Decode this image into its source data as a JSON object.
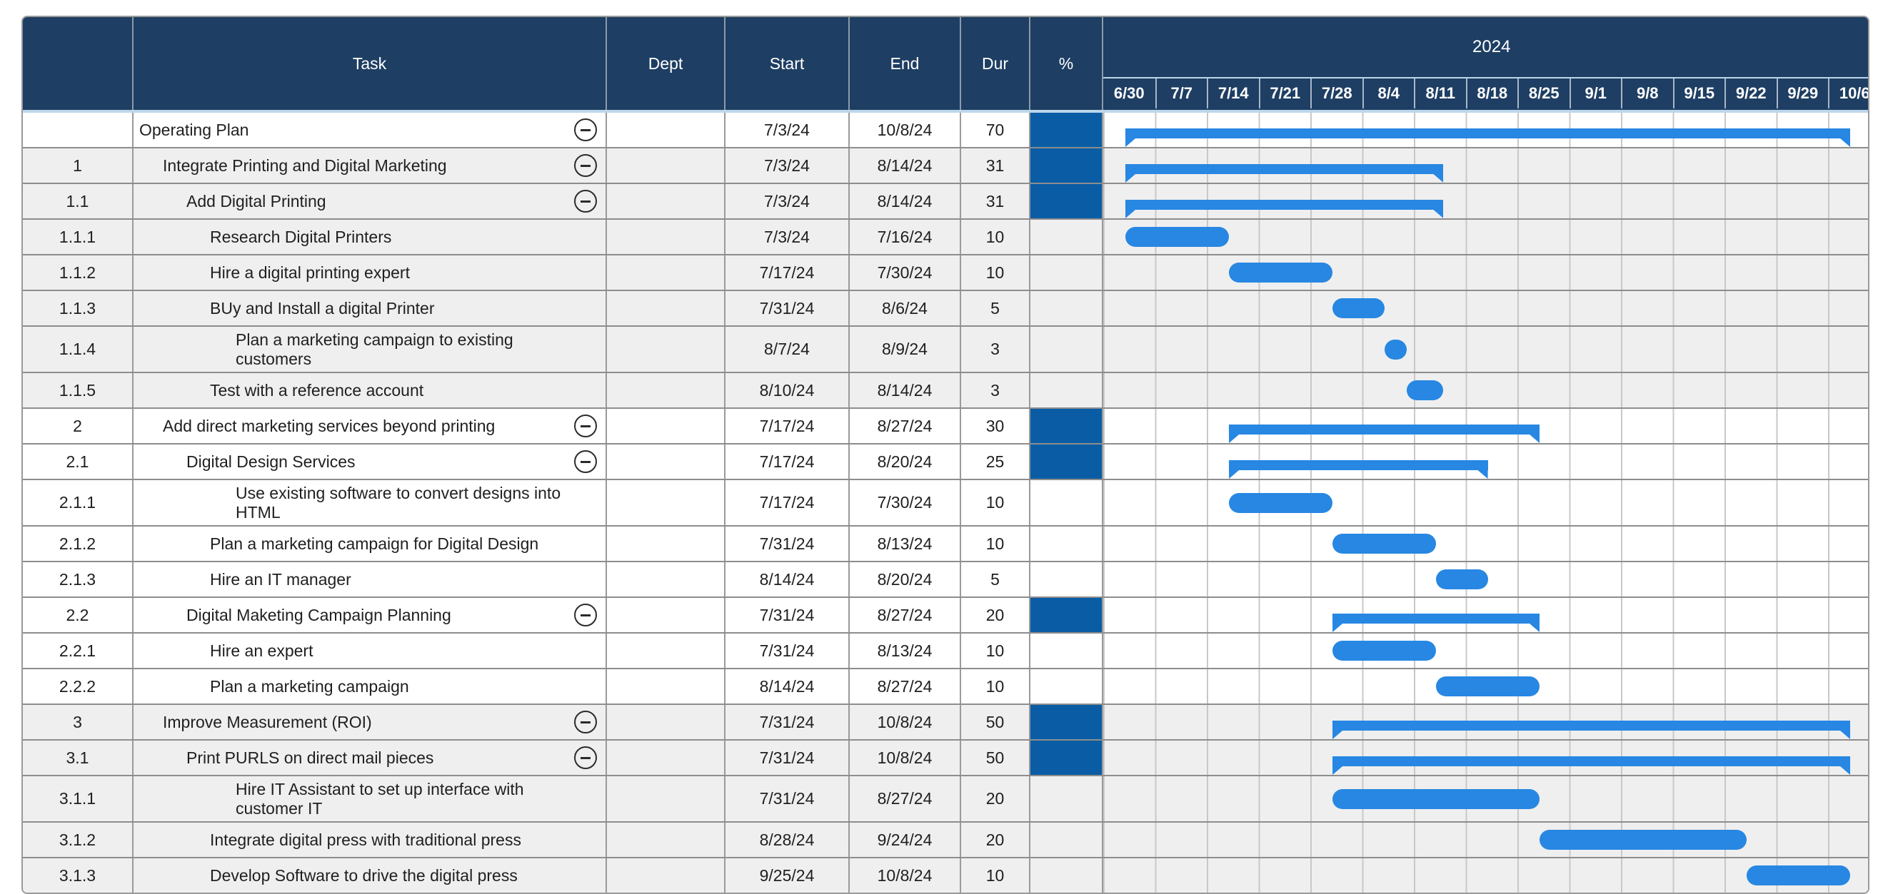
{
  "colors": {
    "header_bg": "#1e3e63",
    "header_text": "#ffffff",
    "bar_blue": "#2787e2",
    "percent_fill": "#0a5da5",
    "row_gray": "#efefef",
    "row_white": "#ffffff",
    "grid_horizontal": "#8d8d8d",
    "grid_vertical": "#9a9a9a",
    "week_line": "#c8c8c8",
    "header_separator": "#bdd6ea"
  },
  "table": {
    "columns": [
      {
        "key": "num",
        "label": ""
      },
      {
        "key": "task",
        "label": "Task"
      },
      {
        "key": "dept",
        "label": "Dept"
      },
      {
        "key": "start",
        "label": "Start"
      },
      {
        "key": "end",
        "label": "End"
      },
      {
        "key": "dur",
        "label": "Dur"
      },
      {
        "key": "pct",
        "label": "%"
      }
    ]
  },
  "timeline": {
    "year": "2024",
    "range_start": "6/30",
    "week_labels": [
      "6/30",
      "7/7",
      "7/14",
      "7/21",
      "7/28",
      "8/4",
      "8/11",
      "8/18",
      "8/25",
      "9/1",
      "9/8",
      "9/15",
      "9/22",
      "9/29",
      "10/6"
    ]
  },
  "chart_data": {
    "type": "gantt",
    "timeline": {
      "year": 2024,
      "first_week_start": "6/30",
      "weeks": 15
    },
    "tasks": [
      {
        "num": "",
        "name": "Operating Plan",
        "dept": "",
        "start": "7/3/24",
        "end": "10/8/24",
        "dur": "70",
        "level": 0,
        "summary": true,
        "shade": "white",
        "tall": false
      },
      {
        "num": "1",
        "name": "Integrate Printing and Digital Marketing",
        "dept": "",
        "start": "7/3/24",
        "end": "8/14/24",
        "dur": "31",
        "level": 1,
        "summary": true,
        "shade": "gray",
        "tall": false
      },
      {
        "num": "1.1",
        "name": "Add Digital Printing",
        "dept": "",
        "start": "7/3/24",
        "end": "8/14/24",
        "dur": "31",
        "level": 2,
        "summary": true,
        "shade": "gray",
        "tall": false
      },
      {
        "num": "1.1.1",
        "name": "Research Digital Printers",
        "dept": "",
        "start": "7/3/24",
        "end": "7/16/24",
        "dur": "10",
        "level": 3,
        "summary": false,
        "shade": "gray",
        "tall": false
      },
      {
        "num": "1.1.2",
        "name": "Hire a digital printing expert",
        "dept": "",
        "start": "7/17/24",
        "end": "7/30/24",
        "dur": "10",
        "level": 3,
        "summary": false,
        "shade": "gray",
        "tall": false
      },
      {
        "num": "1.1.3",
        "name": "BUy and Install a digital Printer",
        "dept": "",
        "start": "7/31/24",
        "end": "8/6/24",
        "dur": "5",
        "level": 3,
        "summary": false,
        "shade": "gray",
        "tall": false
      },
      {
        "num": "1.1.4",
        "name": "Plan a marketing campaign to existing customers",
        "dept": "",
        "start": "8/7/24",
        "end": "8/9/24",
        "dur": "3",
        "level": 3,
        "summary": false,
        "shade": "gray",
        "tall": true
      },
      {
        "num": "1.1.5",
        "name": "Test with a reference account",
        "dept": "",
        "start": "8/10/24",
        "end": "8/14/24",
        "dur": "3",
        "level": 3,
        "summary": false,
        "shade": "gray",
        "tall": false
      },
      {
        "num": "2",
        "name": "Add direct marketing services beyond printing",
        "dept": "",
        "start": "7/17/24",
        "end": "8/27/24",
        "dur": "30",
        "level": 1,
        "summary": true,
        "shade": "white",
        "tall": false
      },
      {
        "num": "2.1",
        "name": "Digital Design Services",
        "dept": "",
        "start": "7/17/24",
        "end": "8/20/24",
        "dur": "25",
        "level": 2,
        "summary": true,
        "shade": "white",
        "tall": false
      },
      {
        "num": "2.1.1",
        "name": "Use existing software to convert designs into HTML",
        "dept": "",
        "start": "7/17/24",
        "end": "7/30/24",
        "dur": "10",
        "level": 3,
        "summary": false,
        "shade": "white",
        "tall": true
      },
      {
        "num": "2.1.2",
        "name": "Plan a marketing campaign for Digital Design",
        "dept": "",
        "start": "7/31/24",
        "end": "8/13/24",
        "dur": "10",
        "level": 3,
        "summary": false,
        "shade": "white",
        "tall": false
      },
      {
        "num": "2.1.3",
        "name": "Hire an IT manager",
        "dept": "",
        "start": "8/14/24",
        "end": "8/20/24",
        "dur": "5",
        "level": 3,
        "summary": false,
        "shade": "white",
        "tall": false
      },
      {
        "num": "2.2",
        "name": "Digital Maketing Campaign Planning",
        "dept": "",
        "start": "7/31/24",
        "end": "8/27/24",
        "dur": "20",
        "level": 2,
        "summary": true,
        "shade": "white",
        "tall": false
      },
      {
        "num": "2.2.1",
        "name": "Hire an expert",
        "dept": "",
        "start": "7/31/24",
        "end": "8/13/24",
        "dur": "10",
        "level": 3,
        "summary": false,
        "shade": "white",
        "tall": false
      },
      {
        "num": "2.2.2",
        "name": "Plan a marketing campaign",
        "dept": "",
        "start": "8/14/24",
        "end": "8/27/24",
        "dur": "10",
        "level": 3,
        "summary": false,
        "shade": "white",
        "tall": false
      },
      {
        "num": "3",
        "name": "Improve Measurement (ROI)",
        "dept": "",
        "start": "7/31/24",
        "end": "10/8/24",
        "dur": "50",
        "level": 1,
        "summary": true,
        "shade": "gray",
        "tall": false
      },
      {
        "num": "3.1",
        "name": "Print PURLS on direct mail pieces",
        "dept": "",
        "start": "7/31/24",
        "end": "10/8/24",
        "dur": "50",
        "level": 2,
        "summary": true,
        "shade": "gray",
        "tall": false
      },
      {
        "num": "3.1.1",
        "name": "Hire IT Assistant to set up interface with customer IT",
        "dept": "",
        "start": "7/31/24",
        "end": "8/27/24",
        "dur": "20",
        "level": 3,
        "summary": false,
        "shade": "gray",
        "tall": true
      },
      {
        "num": "3.1.2",
        "name": "Integrate digital press with traditional press",
        "dept": "",
        "start": "8/28/24",
        "end": "9/24/24",
        "dur": "20",
        "level": 3,
        "summary": false,
        "shade": "gray",
        "tall": false
      },
      {
        "num": "3.1.3",
        "name": "Develop Software to drive the digital press",
        "dept": "",
        "start": "9/25/24",
        "end": "10/8/24",
        "dur": "10",
        "level": 3,
        "summary": false,
        "shade": "gray",
        "tall": false
      }
    ]
  }
}
